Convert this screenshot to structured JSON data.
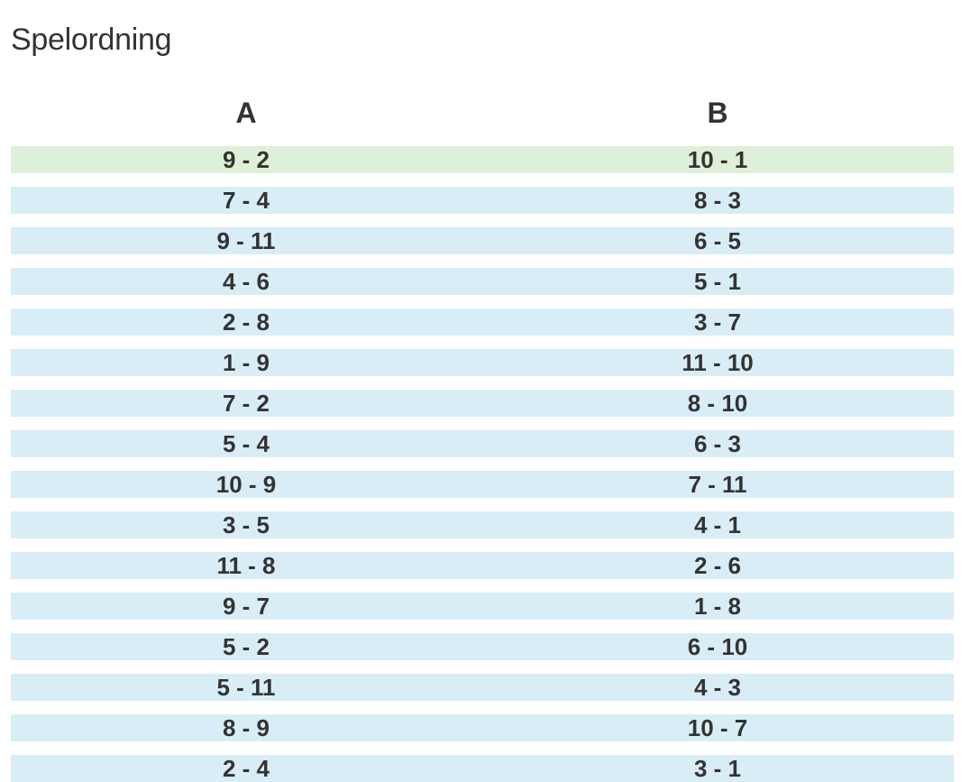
{
  "page": {
    "title": "Spelordning"
  },
  "table": {
    "headers": [
      "A",
      "B"
    ],
    "rows": [
      {
        "a": "9 - 2",
        "b": "10 - 1",
        "status": "success"
      },
      {
        "a": "7 - 4",
        "b": "8 - 3",
        "status": "info"
      },
      {
        "a": "9 - 11",
        "b": "6 - 5",
        "status": "info"
      },
      {
        "a": "4 - 6",
        "b": "5 - 1",
        "status": "info"
      },
      {
        "a": "2 - 8",
        "b": "3 - 7",
        "status": "info"
      },
      {
        "a": "1 - 9",
        "b": "11 - 10",
        "status": "info"
      },
      {
        "a": "7 - 2",
        "b": "8 - 10",
        "status": "info"
      },
      {
        "a": "5 - 4",
        "b": "6 - 3",
        "status": "info"
      },
      {
        "a": "10 - 9",
        "b": "7 - 11",
        "status": "info"
      },
      {
        "a": "3 - 5",
        "b": "4 - 1",
        "status": "info"
      },
      {
        "a": "11 - 8",
        "b": "2 - 6",
        "status": "info"
      },
      {
        "a": "9 - 7",
        "b": "1 - 8",
        "status": "info"
      },
      {
        "a": "5 - 2",
        "b": "6 - 10",
        "status": "info"
      },
      {
        "a": "5 - 11",
        "b": "4 - 3",
        "status": "info"
      },
      {
        "a": "8 - 9",
        "b": "10 - 7",
        "status": "info"
      },
      {
        "a": "2 - 4",
        "b": "3 - 1",
        "status": "info"
      }
    ]
  },
  "colors": {
    "success_row": "#dff0d8",
    "info_row": "#d9edf7",
    "text": "#333333"
  }
}
